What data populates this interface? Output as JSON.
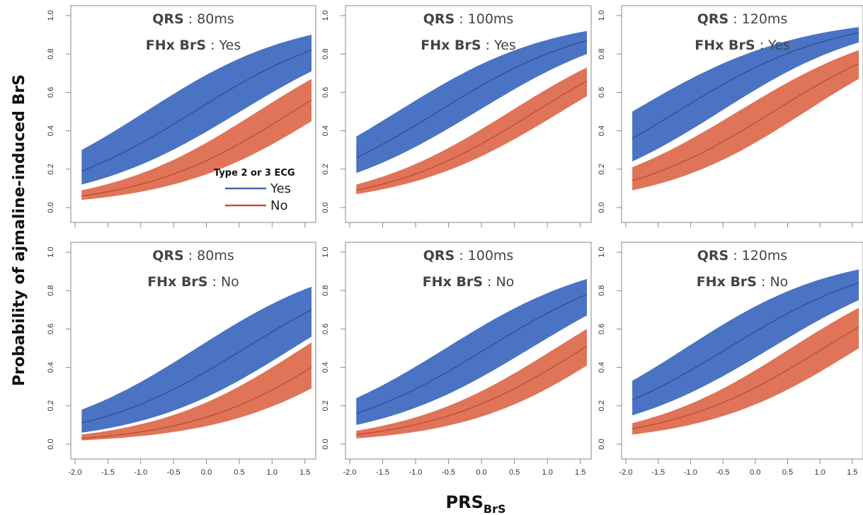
{
  "figure": {
    "ylabel": "Probability of ajmaline-induced BrS",
    "xlabel_main": "PRS",
    "xlabel_sub": "BrS"
  },
  "legend": {
    "title": "Type 2 or 3 ECG",
    "items": [
      {
        "label": "Yes",
        "color": "#3f66b5"
      },
      {
        "label": "No",
        "color": "#c4523a"
      }
    ]
  },
  "colors": {
    "yes_band": "#4a73c4",
    "yes_line": "#2a4a8e",
    "no_band": "#e07458",
    "no_line": "#b8472f",
    "axis": "#888888"
  },
  "chart_data": [
    {
      "type": "area",
      "qrs_label": "QRS",
      "qrs_value": "80ms",
      "fhx_label": "FHx BrS",
      "fhx_value": "Yes",
      "xlim": [
        -2.0,
        1.6
      ],
      "ylim": [
        0.0,
        1.0
      ],
      "xticks": [
        "-2.0",
        "-1.5",
        "-1.0",
        "-0.5",
        "0.0",
        "0.5",
        "1.0",
        "1.5"
      ],
      "yticks": [
        "0.0",
        "0.2",
        "0.4",
        "0.6",
        "0.8",
        "1.0"
      ],
      "x": [
        -1.9,
        1.6
      ],
      "series": [
        {
          "name": "Yes",
          "center": [
            0.19,
            0.82
          ],
          "lower": [
            0.12,
            0.71
          ],
          "upper": [
            0.3,
            0.9
          ]
        },
        {
          "name": "No",
          "center": [
            0.06,
            0.56
          ],
          "lower": [
            0.04,
            0.45
          ],
          "upper": [
            0.09,
            0.67
          ]
        }
      ]
    },
    {
      "type": "area",
      "qrs_label": "QRS",
      "qrs_value": "100ms",
      "fhx_label": "FHx BrS",
      "fhx_value": "Yes",
      "xlim": [
        -2.0,
        1.6
      ],
      "ylim": [
        0.0,
        1.0
      ],
      "xticks": [
        "-2.0",
        "-1.5",
        "-1.0",
        "-0.5",
        "0.0",
        "0.5",
        "1.0",
        "1.5"
      ],
      "yticks": [
        "0.0",
        "0.2",
        "0.4",
        "0.6",
        "0.8",
        "1.0"
      ],
      "x": [
        -1.9,
        1.6
      ],
      "series": [
        {
          "name": "Yes",
          "center": [
            0.26,
            0.87
          ],
          "lower": [
            0.18,
            0.8
          ],
          "upper": [
            0.37,
            0.92
          ]
        },
        {
          "name": "No",
          "center": [
            0.09,
            0.66
          ],
          "lower": [
            0.07,
            0.58
          ],
          "upper": [
            0.12,
            0.73
          ]
        }
      ]
    },
    {
      "type": "area",
      "qrs_label": "QRS",
      "qrs_value": "120ms",
      "fhx_label": "FHx BrS",
      "fhx_value": "Yes",
      "xlim": [
        -2.0,
        1.6
      ],
      "ylim": [
        0.0,
        1.0
      ],
      "xticks": [
        "-2.0",
        "-1.5",
        "-1.0",
        "-0.5",
        "0.0",
        "0.5",
        "1.0",
        "1.5"
      ],
      "yticks": [
        "0.0",
        "0.2",
        "0.4",
        "0.6",
        "0.8",
        "1.0"
      ],
      "x": [
        -1.9,
        1.6
      ],
      "series": [
        {
          "name": "Yes",
          "center": [
            0.36,
            0.91
          ],
          "lower": [
            0.24,
            0.86
          ],
          "upper": [
            0.5,
            0.94
          ]
        },
        {
          "name": "No",
          "center": [
            0.14,
            0.75
          ],
          "lower": [
            0.09,
            0.67
          ],
          "upper": [
            0.21,
            0.82
          ]
        }
      ]
    },
    {
      "type": "area",
      "qrs_label": "QRS",
      "qrs_value": "80ms",
      "fhx_label": "FHx BrS",
      "fhx_value": "No",
      "xlim": [
        -2.0,
        1.6
      ],
      "ylim": [
        0.0,
        1.0
      ],
      "xticks": [
        "-2.0",
        "-1.5",
        "-1.0",
        "-0.5",
        "0.0",
        "0.5",
        "1.0",
        "1.5"
      ],
      "yticks": [
        "0.0",
        "0.2",
        "0.4",
        "0.6",
        "0.8",
        "1.0"
      ],
      "x": [
        -1.9,
        1.6
      ],
      "series": [
        {
          "name": "Yes",
          "center": [
            0.11,
            0.7
          ],
          "lower": [
            0.06,
            0.56
          ],
          "upper": [
            0.18,
            0.82
          ]
        },
        {
          "name": "No",
          "center": [
            0.03,
            0.4
          ],
          "lower": [
            0.02,
            0.29
          ],
          "upper": [
            0.05,
            0.53
          ]
        }
      ]
    },
    {
      "type": "area",
      "qrs_label": "QRS",
      "qrs_value": "100ms",
      "fhx_label": "FHx BrS",
      "fhx_value": "No",
      "xlim": [
        -2.0,
        1.6
      ],
      "ylim": [
        0.0,
        1.0
      ],
      "xticks": [
        "-2.0",
        "-1.5",
        "-1.0",
        "-0.5",
        "0.0",
        "0.5",
        "1.0",
        "1.5"
      ],
      "yticks": [
        "0.0",
        "0.2",
        "0.4",
        "0.6",
        "0.8",
        "1.0"
      ],
      "x": [
        -1.9,
        1.6
      ],
      "series": [
        {
          "name": "Yes",
          "center": [
            0.16,
            0.78
          ],
          "lower": [
            0.1,
            0.67
          ],
          "upper": [
            0.24,
            0.86
          ]
        },
        {
          "name": "No",
          "center": [
            0.05,
            0.51
          ],
          "lower": [
            0.03,
            0.41
          ],
          "upper": [
            0.07,
            0.6
          ]
        }
      ]
    },
    {
      "type": "area",
      "qrs_label": "QRS",
      "qrs_value": "120ms",
      "fhx_label": "FHx BrS",
      "fhx_value": "No",
      "xlim": [
        -2.0,
        1.6
      ],
      "ylim": [
        0.0,
        1.0
      ],
      "xticks": [
        "-2.0",
        "-1.5",
        "-1.0",
        "-0.5",
        "0.0",
        "0.5",
        "1.0",
        "1.5"
      ],
      "yticks": [
        "0.0",
        "0.2",
        "0.4",
        "0.6",
        "0.8",
        "1.0"
      ],
      "x": [
        -1.9,
        1.6
      ],
      "series": [
        {
          "name": "Yes",
          "center": [
            0.23,
            0.84
          ],
          "lower": [
            0.15,
            0.75
          ],
          "upper": [
            0.33,
            0.91
          ]
        },
        {
          "name": "No",
          "center": [
            0.08,
            0.61
          ],
          "lower": [
            0.05,
            0.5
          ],
          "upper": [
            0.11,
            0.71
          ]
        }
      ]
    }
  ]
}
